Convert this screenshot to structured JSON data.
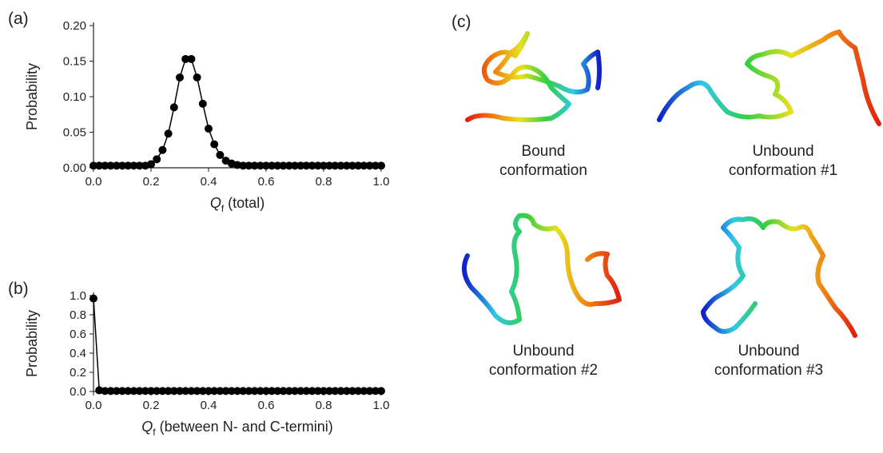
{
  "chart_data": [
    {
      "type": "line",
      "panel_label": "(a)",
      "ylabel": "Probability",
      "xlabel": {
        "symbol": "Q",
        "subscript": "f",
        "text": "(total)"
      },
      "color": "#000000",
      "x": [
        0,
        0.02,
        0.04,
        0.06,
        0.08,
        0.1,
        0.12,
        0.14,
        0.16,
        0.18,
        0.2,
        0.22,
        0.24,
        0.26,
        0.28,
        0.3,
        0.32,
        0.34,
        0.36,
        0.38,
        0.4,
        0.42,
        0.44,
        0.46,
        0.48,
        0.5,
        0.52,
        0.54,
        0.56,
        0.58,
        0.6,
        0.62,
        0.64,
        0.66,
        0.68,
        0.7,
        0.72,
        0.74,
        0.76,
        0.78,
        0.8,
        0.82,
        0.84,
        0.86,
        0.88,
        0.9,
        0.92,
        0.94,
        0.96,
        0.98,
        1
      ],
      "values": [
        0.003,
        0.003,
        0.003,
        0.003,
        0.003,
        0.003,
        0.003,
        0.003,
        0.003,
        0.003,
        0.005,
        0.012,
        0.025,
        0.048,
        0.085,
        0.127,
        0.153,
        0.153,
        0.127,
        0.09,
        0.055,
        0.033,
        0.018,
        0.01,
        0.006,
        0.004,
        0.003,
        0.003,
        0.003,
        0.003,
        0.003,
        0.003,
        0.003,
        0.003,
        0.003,
        0.003,
        0.003,
        0.003,
        0.003,
        0.003,
        0.003,
        0.003,
        0.003,
        0.003,
        0.003,
        0.003,
        0.003,
        0.003,
        0.003,
        0.003,
        0.003
      ],
      "xlim": [
        0,
        1
      ],
      "ylim": [
        0,
        0.2
      ],
      "xticks": [
        {
          "value": 0,
          "label": "0.0"
        },
        {
          "value": 0.2,
          "label": "0.2"
        },
        {
          "value": 0.4,
          "label": "0.4"
        },
        {
          "value": 0.6,
          "label": "0.6"
        },
        {
          "value": 0.8,
          "label": "0.8"
        },
        {
          "value": 1,
          "label": "1.0"
        }
      ],
      "yticks": [
        {
          "value": 0,
          "label": "0.00"
        },
        {
          "value": 0.05,
          "label": "0.05"
        },
        {
          "value": 0.1,
          "label": "0.10"
        },
        {
          "value": 0.15,
          "label": "0.15"
        },
        {
          "value": 0.2,
          "label": "0.20"
        }
      ]
    },
    {
      "type": "line",
      "panel_label": "(b)",
      "ylabel": "Probability",
      "xlabel": {
        "symbol": "Q",
        "subscript": "f",
        "text": "(between N- and C-termini)"
      },
      "color": "#000000",
      "x": [
        0,
        0.02,
        0.04,
        0.06,
        0.08,
        0.1,
        0.12,
        0.14,
        0.16,
        0.18,
        0.2,
        0.22,
        0.24,
        0.26,
        0.28,
        0.3,
        0.32,
        0.34,
        0.36,
        0.38,
        0.4,
        0.42,
        0.44,
        0.46,
        0.48,
        0.5,
        0.52,
        0.54,
        0.56,
        0.58,
        0.6,
        0.62,
        0.64,
        0.66,
        0.68,
        0.7,
        0.72,
        0.74,
        0.76,
        0.78,
        0.8,
        0.82,
        0.84,
        0.86,
        0.88,
        0.9,
        0.92,
        0.94,
        0.96,
        0.98,
        1
      ],
      "values": [
        0.97,
        0.012,
        0.005,
        0.005,
        0.005,
        0.005,
        0.005,
        0.005,
        0.005,
        0.005,
        0.005,
        0.005,
        0.005,
        0.005,
        0.005,
        0.005,
        0.005,
        0.005,
        0.005,
        0.005,
        0.005,
        0.005,
        0.005,
        0.005,
        0.005,
        0.005,
        0.005,
        0.005,
        0.005,
        0.005,
        0.005,
        0.005,
        0.005,
        0.005,
        0.005,
        0.005,
        0.005,
        0.005,
        0.005,
        0.005,
        0.005,
        0.005,
        0.005,
        0.005,
        0.005,
        0.005,
        0.005,
        0.005,
        0.005,
        0.005,
        0.005
      ],
      "xlim": [
        0,
        1
      ],
      "ylim": [
        0,
        1
      ],
      "xticks": [
        {
          "value": 0,
          "label": "0.0"
        },
        {
          "value": 0.2,
          "label": "0.2"
        },
        {
          "value": 0.4,
          "label": "0.4"
        },
        {
          "value": 0.6,
          "label": "0.6"
        },
        {
          "value": 0.8,
          "label": "0.8"
        },
        {
          "value": 1,
          "label": "1.0"
        }
      ],
      "yticks": [
        {
          "value": 0,
          "label": "0.0"
        },
        {
          "value": 0.2,
          "label": "0.2"
        },
        {
          "value": 0.4,
          "label": "0.4"
        },
        {
          "value": 0.6,
          "label": "0.6"
        },
        {
          "value": 0.8,
          "label": "0.8"
        },
        {
          "value": 1,
          "label": "1.0"
        }
      ]
    }
  ],
  "panel_c": {
    "panel_label": "(c)",
    "captions": [
      [
        "Bound",
        "conformation"
      ],
      [
        "Unbound",
        "conformation #1"
      ],
      [
        "Unbound",
        "conformation #2"
      ],
      [
        "Unbound",
        "conformation #3"
      ]
    ]
  }
}
